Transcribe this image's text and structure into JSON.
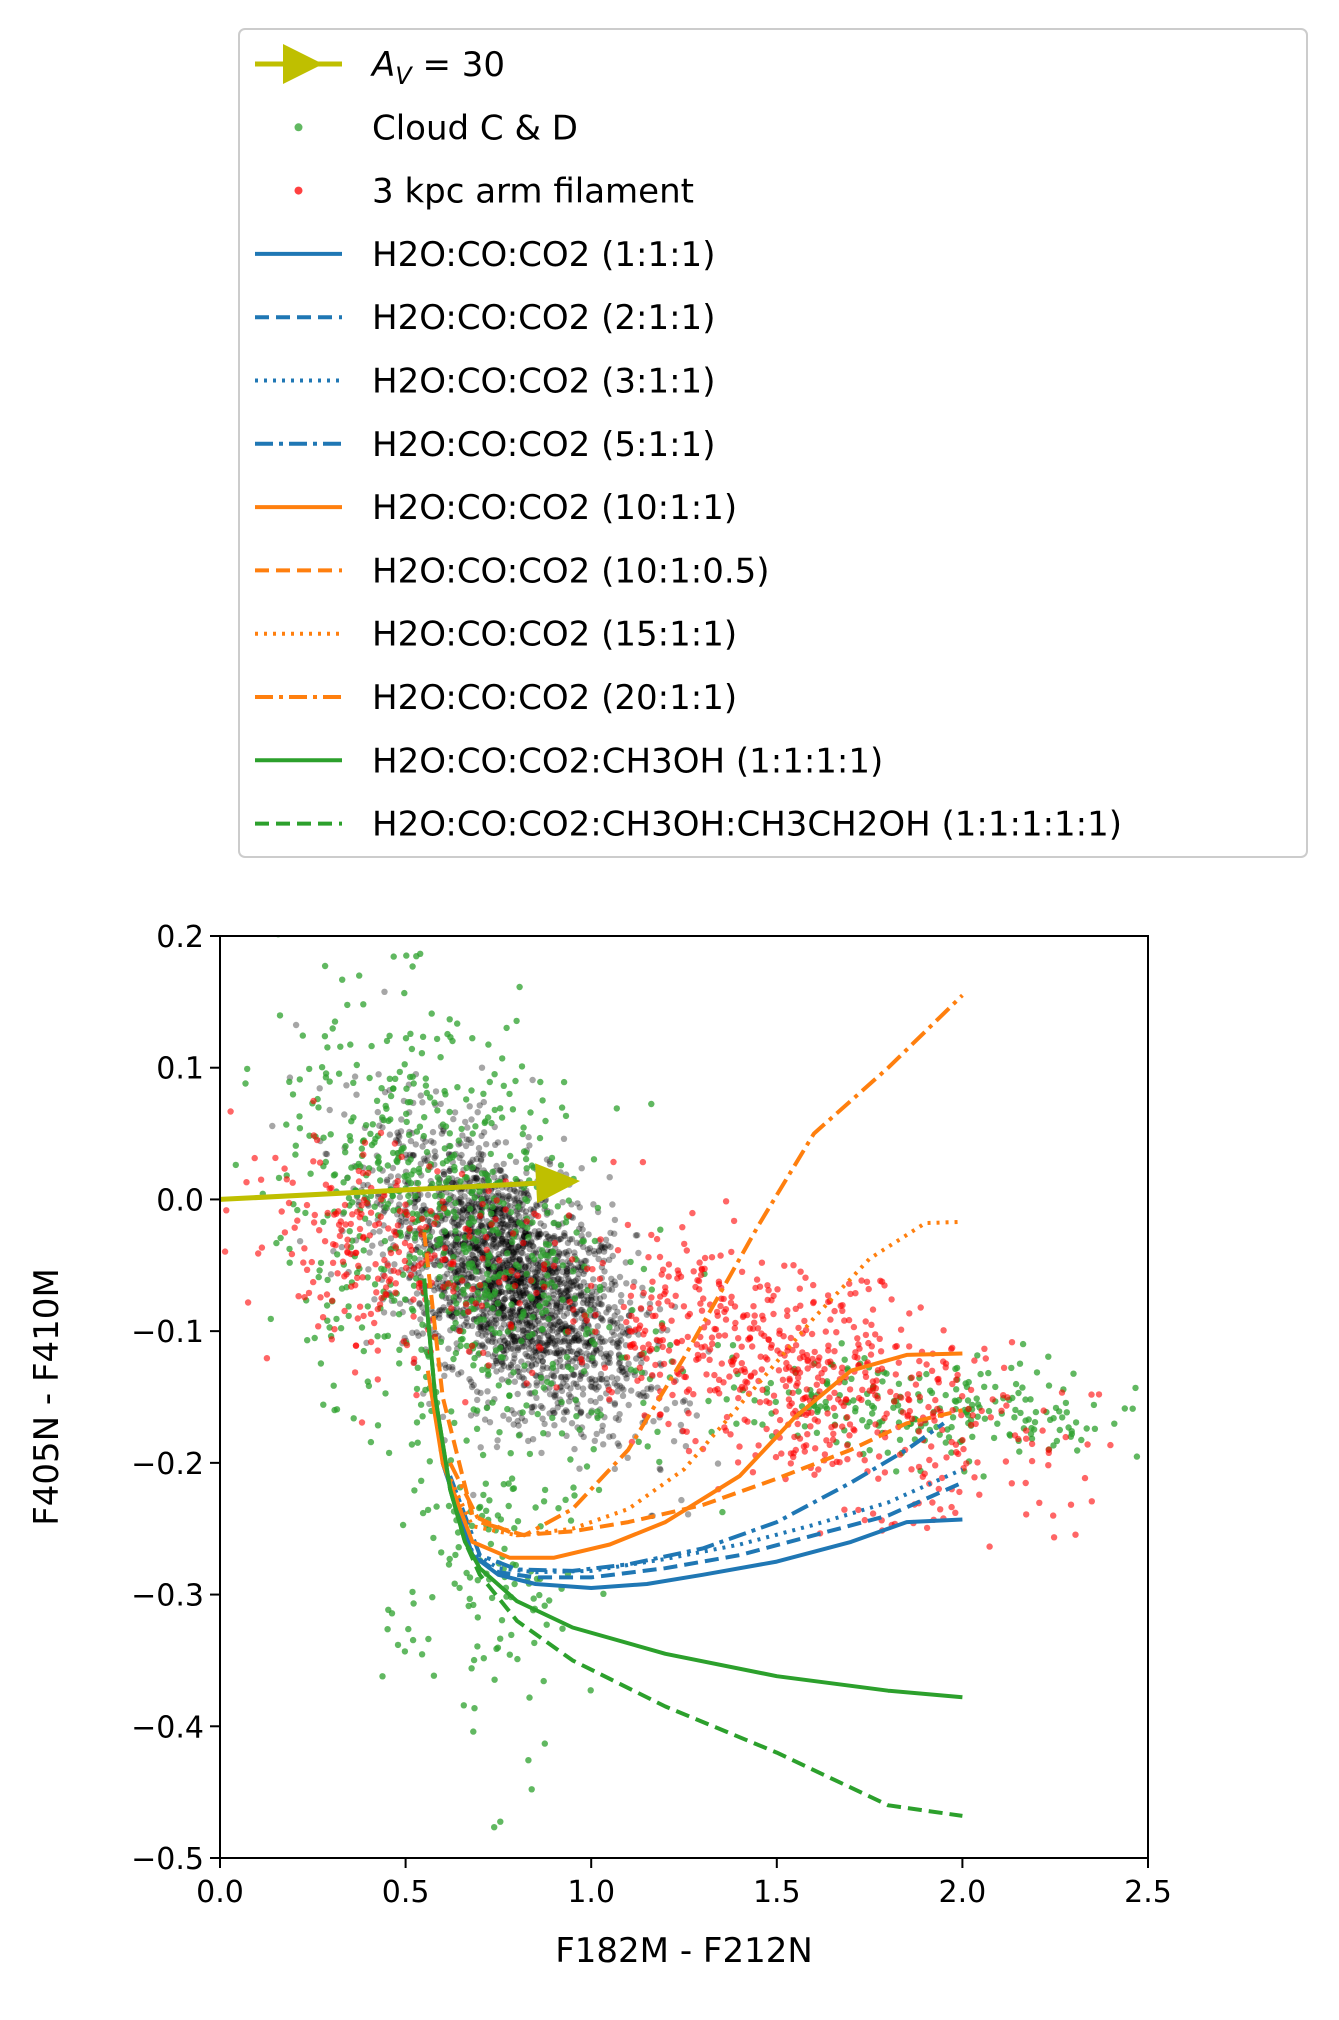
{
  "chart_data": {
    "type": "scatter",
    "xlabel": "F182M - F212N",
    "ylabel": "F405N - F410M",
    "xlim": [
      0.0,
      2.5
    ],
    "ylim": [
      -0.5,
      0.2
    ],
    "x_ticks": [
      0.0,
      0.5,
      1.0,
      1.5,
      2.0,
      2.5
    ],
    "x_tick_labels": [
      "0.0",
      "0.5",
      "1.0",
      "1.5",
      "2.0",
      "2.5"
    ],
    "y_ticks": [
      0.2,
      0.1,
      0.0,
      -0.1,
      -0.2,
      -0.3,
      -0.4,
      -0.5
    ],
    "y_tick_labels": [
      "0.2",
      "0.1",
      "0.0",
      "−0.1",
      "−0.2",
      "−0.3",
      "−0.4",
      "−0.5"
    ],
    "grid": false,
    "legend_position": "above plot",
    "extinction_arrow": {
      "label": "A_V = 30",
      "label_main": "A",
      "label_sub": "V",
      "label_rest": " = 30",
      "color": "#bfbf00",
      "start": [
        0.0,
        0.0
      ],
      "end": [
        0.97,
        0.014
      ]
    },
    "scatter_series": [
      {
        "name": "",
        "color": "#000000",
        "note_visible_only": true
      },
      {
        "name": "Cloud C & D",
        "color": "#2ca02c"
      },
      {
        "name": "3 kpc arm filament",
        "color": "#ff0000"
      }
    ],
    "point_clouds": [
      {
        "color": "#000000",
        "count": 2400,
        "center": [
          0.78,
          -0.06
        ],
        "spread": [
          0.17,
          0.045
        ],
        "slope": -0.17,
        "opacity": 0.35
      },
      {
        "color": "#2ca02c",
        "count": 700,
        "center": [
          0.62,
          -0.02
        ],
        "spread": [
          0.23,
          0.075
        ],
        "slope": -0.12,
        "opacity": 0.75
      },
      {
        "color": "#2ca02c",
        "count": 250,
        "center": [
          1.9,
          -0.16
        ],
        "spread": [
          0.32,
          0.02
        ],
        "slope": -0.02,
        "opacity": 0.75
      },
      {
        "color": "#2ca02c",
        "count": 150,
        "center": [
          0.7,
          -0.28
        ],
        "spread": [
          0.13,
          0.08
        ],
        "slope": 0.0,
        "opacity": 0.75
      },
      {
        "color": "#ff0000",
        "count": 650,
        "center": [
          1.55,
          -0.13
        ],
        "spread": [
          0.33,
          0.04
        ],
        "slope": -0.09,
        "opacity": 0.6
      },
      {
        "color": "#ff0000",
        "count": 250,
        "center": [
          0.45,
          -0.04
        ],
        "spread": [
          0.2,
          0.04
        ],
        "slope": -0.05,
        "opacity": 0.6
      }
    ],
    "series": [
      {
        "name": "H2O:CO:CO2 (1:1:1)",
        "color": "#1f77b4",
        "dash": "solid",
        "x": [
          0.6,
          0.68,
          0.75,
          0.85,
          1.0,
          1.15,
          1.3,
          1.5,
          1.7,
          1.85,
          2.0
        ],
        "y": [
          -0.2,
          -0.27,
          -0.285,
          -0.292,
          -0.295,
          -0.292,
          -0.285,
          -0.275,
          -0.26,
          -0.245,
          -0.243
        ]
      },
      {
        "name": "H2O:CO:CO2 (2:1:1)",
        "color": "#1f77b4",
        "dash": "dashed",
        "x": [
          0.6,
          0.68,
          0.75,
          0.85,
          1.0,
          1.2,
          1.4,
          1.6,
          1.8,
          2.0
        ],
        "y": [
          -0.2,
          -0.27,
          -0.283,
          -0.287,
          -0.287,
          -0.28,
          -0.27,
          -0.255,
          -0.24,
          -0.215
        ]
      },
      {
        "name": "H2O:CO:CO2 (3:1:1)",
        "color": "#1f77b4",
        "dash": "dotted",
        "x": [
          0.6,
          0.68,
          0.75,
          0.85,
          1.0,
          1.2,
          1.4,
          1.6,
          1.8,
          2.0
        ],
        "y": [
          -0.2,
          -0.268,
          -0.28,
          -0.283,
          -0.282,
          -0.273,
          -0.262,
          -0.247,
          -0.23,
          -0.205
        ]
      },
      {
        "name": "H2O:CO:CO2 (5:1:1)",
        "color": "#1f77b4",
        "dash": "dashdot",
        "x": [
          0.62,
          0.7,
          0.8,
          0.95,
          1.1,
          1.3,
          1.5,
          1.7,
          1.85,
          1.95
        ],
        "y": [
          -0.21,
          -0.27,
          -0.281,
          -0.282,
          -0.277,
          -0.265,
          -0.245,
          -0.215,
          -0.19,
          -0.17
        ]
      },
      {
        "name": "H2O:CO:CO2 (10:1:1)",
        "color": "#ff7f0e",
        "dash": "solid",
        "x": [
          0.56,
          0.6,
          0.68,
          0.78,
          0.9,
          1.05,
          1.2,
          1.4,
          1.55,
          1.7,
          1.85,
          2.0
        ],
        "y": [
          -0.13,
          -0.2,
          -0.26,
          -0.272,
          -0.272,
          -0.262,
          -0.245,
          -0.21,
          -0.165,
          -0.13,
          -0.118,
          -0.117
        ]
      },
      {
        "name": "H2O:CO:CO2 (10:1:0.5)",
        "color": "#ff7f0e",
        "dash": "dashed",
        "x": [
          0.55,
          0.6,
          0.68,
          0.8,
          0.95,
          1.1,
          1.3,
          1.5,
          1.7,
          1.85,
          2.0
        ],
        "y": [
          -0.025,
          -0.15,
          -0.24,
          -0.255,
          -0.252,
          -0.245,
          -0.232,
          -0.212,
          -0.19,
          -0.17,
          -0.16
        ]
      },
      {
        "name": "H2O:CO:CO2 (15:1:1)",
        "color": "#ff7f0e",
        "dash": "dotted",
        "x": [
          0.6,
          0.68,
          0.8,
          0.95,
          1.1,
          1.25,
          1.45,
          1.6,
          1.75,
          1.9,
          2.0
        ],
        "y": [
          -0.2,
          -0.248,
          -0.255,
          -0.25,
          -0.235,
          -0.205,
          -0.14,
          -0.09,
          -0.045,
          -0.018,
          -0.017
        ]
      },
      {
        "name": "H2O:CO:CO2 (20:1:1)",
        "color": "#ff7f0e",
        "dash": "dashdot",
        "x": [
          0.62,
          0.7,
          0.82,
          0.95,
          1.1,
          1.25,
          1.45,
          1.6,
          1.8,
          2.0
        ],
        "y": [
          -0.2,
          -0.245,
          -0.255,
          -0.235,
          -0.19,
          -0.12,
          -0.02,
          0.05,
          0.1,
          0.155
        ]
      },
      {
        "name": "H2O:CO:CO2:CH3OH (1:1:1:1)",
        "color": "#2ca02c",
        "dash": "solid",
        "x": [
          0.55,
          0.58,
          0.62,
          0.66,
          0.7,
          0.8,
          0.95,
          1.2,
          1.5,
          1.8,
          2.0
        ],
        "y": [
          -0.06,
          -0.15,
          -0.22,
          -0.26,
          -0.28,
          -0.305,
          -0.325,
          -0.345,
          -0.362,
          -0.373,
          -0.378
        ]
      },
      {
        "name": "H2O:CO:CO2:CH3OH:CH3CH2OH (1:1:1:1:1)",
        "color": "#2ca02c",
        "dash": "dashed",
        "x": [
          0.55,
          0.58,
          0.62,
          0.66,
          0.7,
          0.8,
          0.95,
          1.2,
          1.5,
          1.8,
          2.0
        ],
        "y": [
          -0.06,
          -0.15,
          -0.22,
          -0.26,
          -0.285,
          -0.32,
          -0.35,
          -0.385,
          -0.42,
          -0.46,
          -0.468
        ]
      }
    ]
  }
}
